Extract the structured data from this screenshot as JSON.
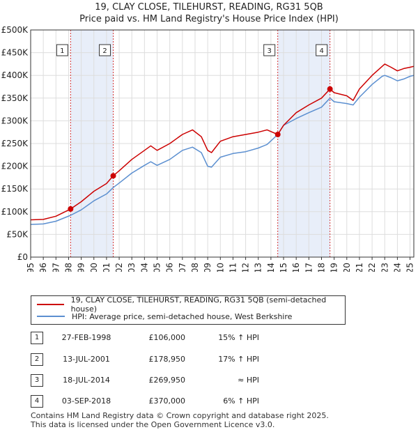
{
  "chart_data": {
    "type": "line",
    "title": "19, CLAY CLOSE, TILEHURST, READING, RG31 5QB",
    "subtitle": "Price paid vs. HM Land Registry's House Price Index (HPI)",
    "xlim": [
      1995,
      2025.3
    ],
    "ylim": [
      0,
      500000
    ],
    "x_ticks": [
      "1995",
      "1996",
      "1997",
      "1998",
      "1999",
      "2000",
      "2001",
      "2002",
      "2003",
      "2004",
      "2005",
      "2006",
      "2007",
      "2008",
      "2009",
      "2010",
      "2011",
      "2012",
      "2013",
      "2014",
      "2015",
      "2016",
      "2017",
      "2018",
      "2019",
      "2020",
      "2021",
      "2022",
      "2023",
      "2024",
      "2025"
    ],
    "y_ticks": [
      {
        "value": 0,
        "label": "£0"
      },
      {
        "value": 50000,
        "label": "£50K"
      },
      {
        "value": 100000,
        "label": "£100K"
      },
      {
        "value": 150000,
        "label": "£150K"
      },
      {
        "value": 200000,
        "label": "£200K"
      },
      {
        "value": 250000,
        "label": "£250K"
      },
      {
        "value": 300000,
        "label": "£300K"
      },
      {
        "value": 350000,
        "label": "£350K"
      },
      {
        "value": 400000,
        "label": "£400K"
      },
      {
        "value": 450000,
        "label": "£450K"
      },
      {
        "value": 500000,
        "label": "£500K"
      }
    ],
    "shaded_periods": [
      [
        1998.16,
        2001.53
      ],
      [
        2014.54,
        2018.67
      ]
    ],
    "series": [
      {
        "name": "19, CLAY CLOSE, TILEHURST, READING, RG31 5QB (semi-detached house)",
        "color": "#cc0000",
        "x": [
          1995,
          1996,
          1997,
          1998.16,
          1999,
          2000,
          2001,
          2001.53,
          2002,
          2003,
          2004,
          2004.5,
          2005,
          2006,
          2007,
          2007.8,
          2008.5,
          2009,
          2009.3,
          2010,
          2011,
          2012,
          2013,
          2013.7,
          2014.54,
          2015,
          2016,
          2017,
          2018,
          2018.67,
          2019,
          2020,
          2020.5,
          2021,
          2022,
          2022.8,
          2023,
          2023.5,
          2024,
          2024.5,
          2025,
          2025.3
        ],
        "y": [
          82000,
          83000,
          90000,
          106000,
          122000,
          145000,
          162000,
          178950,
          190000,
          215000,
          235000,
          245000,
          235000,
          250000,
          270000,
          280000,
          265000,
          235000,
          230000,
          255000,
          265000,
          270000,
          275000,
          280000,
          269950,
          290000,
          318000,
          335000,
          350000,
          370000,
          362000,
          355000,
          345000,
          370000,
          400000,
          420000,
          425000,
          418000,
          410000,
          415000,
          418000,
          420000
        ]
      },
      {
        "name": "HPI: Average price, semi-detached house, West Berkshire",
        "color": "#5b8fd0",
        "x": [
          1995,
          1996,
          1997,
          1998.16,
          1999,
          2000,
          2001,
          2001.53,
          2002,
          2003,
          2004,
          2004.5,
          2005,
          2006,
          2007,
          2007.8,
          2008.5,
          2009,
          2009.3,
          2010,
          2011,
          2012,
          2013,
          2013.7,
          2014.54,
          2015,
          2016,
          2017,
          2018,
          2018.67,
          2019,
          2020,
          2020.5,
          2021,
          2022,
          2022.8,
          2023,
          2023.5,
          2024,
          2024.5,
          2025,
          2025.3
        ],
        "y": [
          72000,
          73000,
          79000,
          92000,
          104000,
          124000,
          139000,
          153000,
          163000,
          185000,
          202000,
          210000,
          202000,
          215000,
          235000,
          242000,
          230000,
          200000,
          198000,
          220000,
          228000,
          232000,
          240000,
          248000,
          270000,
          290000,
          305000,
          318000,
          330000,
          350000,
          342000,
          338000,
          335000,
          352000,
          380000,
          398000,
          400000,
          395000,
          388000,
          392000,
          398000,
          400000
        ]
      }
    ],
    "sales": [
      {
        "id": "1",
        "x": 1998.16,
        "y": 106000,
        "date": "27-FEB-1998",
        "price": "£106,000",
        "hpi": "15% ↑ HPI"
      },
      {
        "id": "2",
        "x": 2001.53,
        "y": 178950,
        "date": "13-JUL-2001",
        "price": "£178,950",
        "hpi": "17% ↑ HPI"
      },
      {
        "id": "3",
        "x": 2014.54,
        "y": 269950,
        "date": "18-JUL-2014",
        "price": "£269,950",
        "hpi": "≈ HPI"
      },
      {
        "id": "4",
        "x": 2018.67,
        "y": 370000,
        "date": "03-SEP-2018",
        "price": "£370,000",
        "hpi": "6% ↑ HPI"
      }
    ]
  },
  "colors": {
    "red": "#cc0000",
    "blue": "#5b8fd0",
    "shade": "#e8eef9",
    "grid": "#dddddd"
  },
  "legend": {
    "red_label": "19, CLAY CLOSE, TILEHURST, READING, RG31 5QB (semi-detached house)",
    "blue_label": "HPI: Average price, semi-detached house, West Berkshire"
  },
  "footer": {
    "line1": "Contains HM Land Registry data © Crown copyright and database right 2025.",
    "line2": "This data is licensed under the Open Government Licence v3.0."
  }
}
